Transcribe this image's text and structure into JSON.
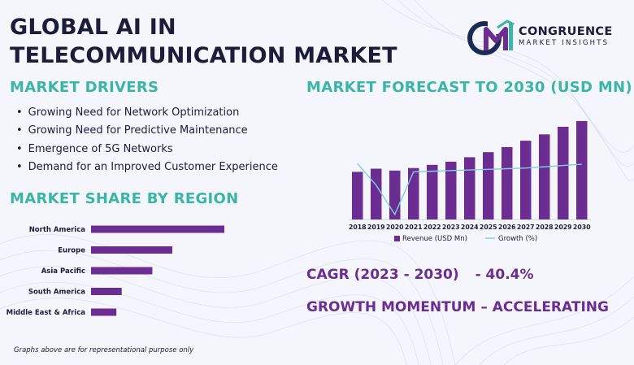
{
  "header": {
    "title_line1": "GLOBAL AI IN",
    "title_line2": "TELECOMMUNICATION MARKET"
  },
  "brand": {
    "name": "CONGRUENCE",
    "tagline": "MARKET INSIGHTS",
    "logo_icon": "cmi-monogram-icon",
    "colors": {
      "navy": "#1b2a52",
      "purple": "#6b2d91",
      "teal": "#3ab5a8"
    }
  },
  "drivers": {
    "heading": "MARKET DRIVERS",
    "items": [
      "Growing Need for Network Optimization",
      "Growing Need for Predictive Maintenance",
      "Emergence of 5G Networks",
      "Demand for an Improved Customer Experience"
    ]
  },
  "region": {
    "heading": "MARKET SHARE BY REGION"
  },
  "forecast": {
    "heading": "MARKET FORECAST TO 2030 (USD MN)"
  },
  "cagr": {
    "label": "CAGR (2023 - 2030)",
    "value": "- 40.4%"
  },
  "momentum": {
    "label": "GROWTH MOMENTUM – ACCELERATING"
  },
  "footnote": "Graphs above are for representational purpose only",
  "chart_data": [
    {
      "type": "bar",
      "orientation": "horizontal",
      "title": "MARKET SHARE BY REGION",
      "categories": [
        "North America",
        "Europe",
        "Asia Pacific",
        "South America",
        "Middle East & Africa"
      ],
      "values": [
        100,
        61,
        46,
        23,
        19
      ],
      "value_scale": "relative",
      "colors": {
        "bar": "#6b2d91"
      }
    },
    {
      "type": "bar",
      "title": "MARKET FORECAST TO 2030 (USD MN)",
      "categories": [
        "2018",
        "2019",
        "2020",
        "2021",
        "2022",
        "2023",
        "2024",
        "2025",
        "2026",
        "2027",
        "2028",
        "2029",
        "2030"
      ],
      "series": [
        {
          "name": "Revenue (USD Mn)",
          "type": "bar",
          "values": [
            75,
            80,
            77,
            81,
            86,
            91,
            98,
            106,
            114,
            124,
            134,
            146,
            155
          ]
        },
        {
          "name": "Growth (%)",
          "type": "line",
          "values": [
            88,
            54,
            8,
            75,
            76,
            77,
            78,
            79,
            80,
            81,
            83,
            85,
            87
          ]
        }
      ],
      "ylim": [
        0,
        160
      ],
      "grid": false,
      "legend": "bottom",
      "colors": {
        "bar": "#6b2d91",
        "line": "#7fcfe0"
      }
    }
  ]
}
